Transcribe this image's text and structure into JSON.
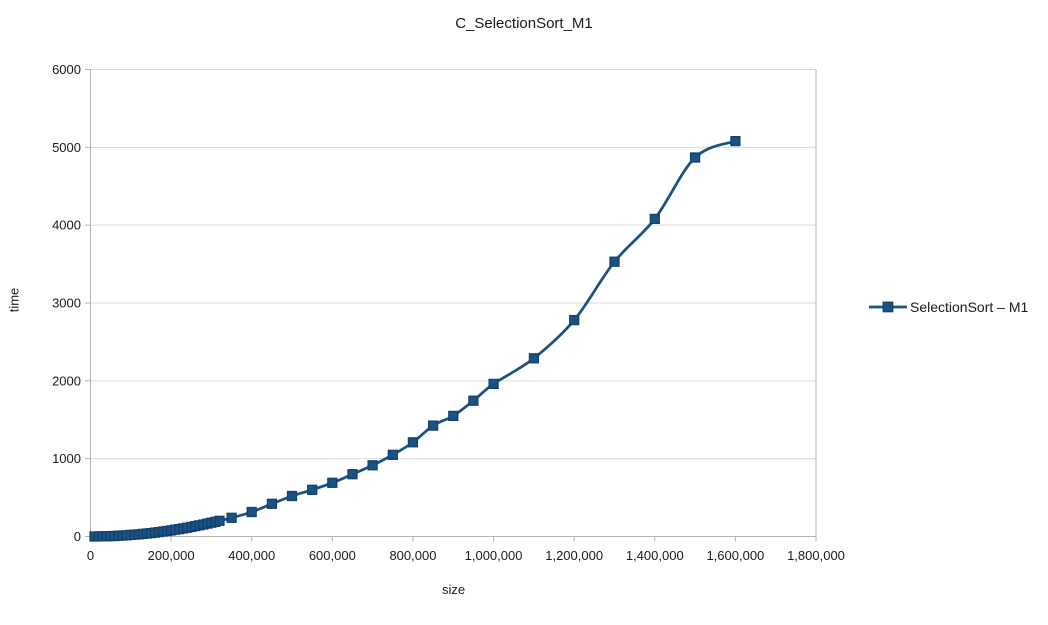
{
  "colors": {
    "line": "#1A5282",
    "marker_fill": "#1A5282",
    "marker_stroke": "#11406B",
    "grid": "#d9d9d9",
    "axis": "#b3b3b3",
    "text": "#1a1a1a",
    "background": "#ffffff"
  },
  "chart_data": {
    "type": "line",
    "title": "C_SelectionSort_M1",
    "xlabel": "size",
    "ylabel": "time",
    "xlim": [
      0,
      1800000
    ],
    "ylim": [
      0,
      6000
    ],
    "grid": "horizontal-only",
    "legend": {
      "position": "right",
      "entries": [
        "SelectionSort – M1"
      ]
    },
    "x_ticks": [
      [
        0,
        "0"
      ],
      [
        200000,
        "200,000"
      ],
      [
        400000,
        "400,000"
      ],
      [
        600000,
        "600,000"
      ],
      [
        800000,
        "800,000"
      ],
      [
        1000000,
        "1,000,000"
      ],
      [
        1200000,
        "1,200,000"
      ],
      [
        1400000,
        "1,400,000"
      ],
      [
        1600000,
        "1,600,000"
      ],
      [
        1800000,
        "1,800,000"
      ]
    ],
    "y_ticks": [
      [
        0,
        "0"
      ],
      [
        1000,
        "1000"
      ],
      [
        2000,
        "2000"
      ],
      [
        3000,
        "3000"
      ],
      [
        4000,
        "4000"
      ],
      [
        5000,
        "5000"
      ],
      [
        6000,
        "6000"
      ]
    ],
    "series": [
      {
        "name": "SelectionSort – M1",
        "marker": "square",
        "points": [
          [
            10000,
            0
          ],
          [
            20000,
            1
          ],
          [
            30000,
            2
          ],
          [
            40000,
            3
          ],
          [
            50000,
            5
          ],
          [
            60000,
            7
          ],
          [
            70000,
            10
          ],
          [
            80000,
            13
          ],
          [
            90000,
            16
          ],
          [
            100000,
            20
          ],
          [
            110000,
            24
          ],
          [
            120000,
            28
          ],
          [
            130000,
            33
          ],
          [
            140000,
            39
          ],
          [
            150000,
            44
          ],
          [
            160000,
            50
          ],
          [
            170000,
            57
          ],
          [
            180000,
            64
          ],
          [
            190000,
            71
          ],
          [
            200000,
            79
          ],
          [
            210000,
            87
          ],
          [
            220000,
            95
          ],
          [
            230000,
            104
          ],
          [
            240000,
            113
          ],
          [
            250000,
            123
          ],
          [
            260000,
            133
          ],
          [
            270000,
            144
          ],
          [
            280000,
            154
          ],
          [
            290000,
            166
          ],
          [
            300000,
            177
          ],
          [
            310000,
            189
          ],
          [
            320000,
            202
          ],
          [
            350000,
            240
          ],
          [
            400000,
            315
          ],
          [
            450000,
            420
          ],
          [
            500000,
            520
          ],
          [
            550000,
            600
          ],
          [
            600000,
            690
          ],
          [
            650000,
            800
          ],
          [
            700000,
            915
          ],
          [
            750000,
            1050
          ],
          [
            800000,
            1210
          ],
          [
            850000,
            1425
          ],
          [
            900000,
            1550
          ],
          [
            950000,
            1745
          ],
          [
            1000000,
            1960
          ],
          [
            1100000,
            2290
          ],
          [
            1200000,
            2780
          ],
          [
            1300000,
            3530
          ],
          [
            1400000,
            4080
          ],
          [
            1500000,
            4870
          ],
          [
            1600000,
            5080
          ]
        ]
      }
    ]
  }
}
